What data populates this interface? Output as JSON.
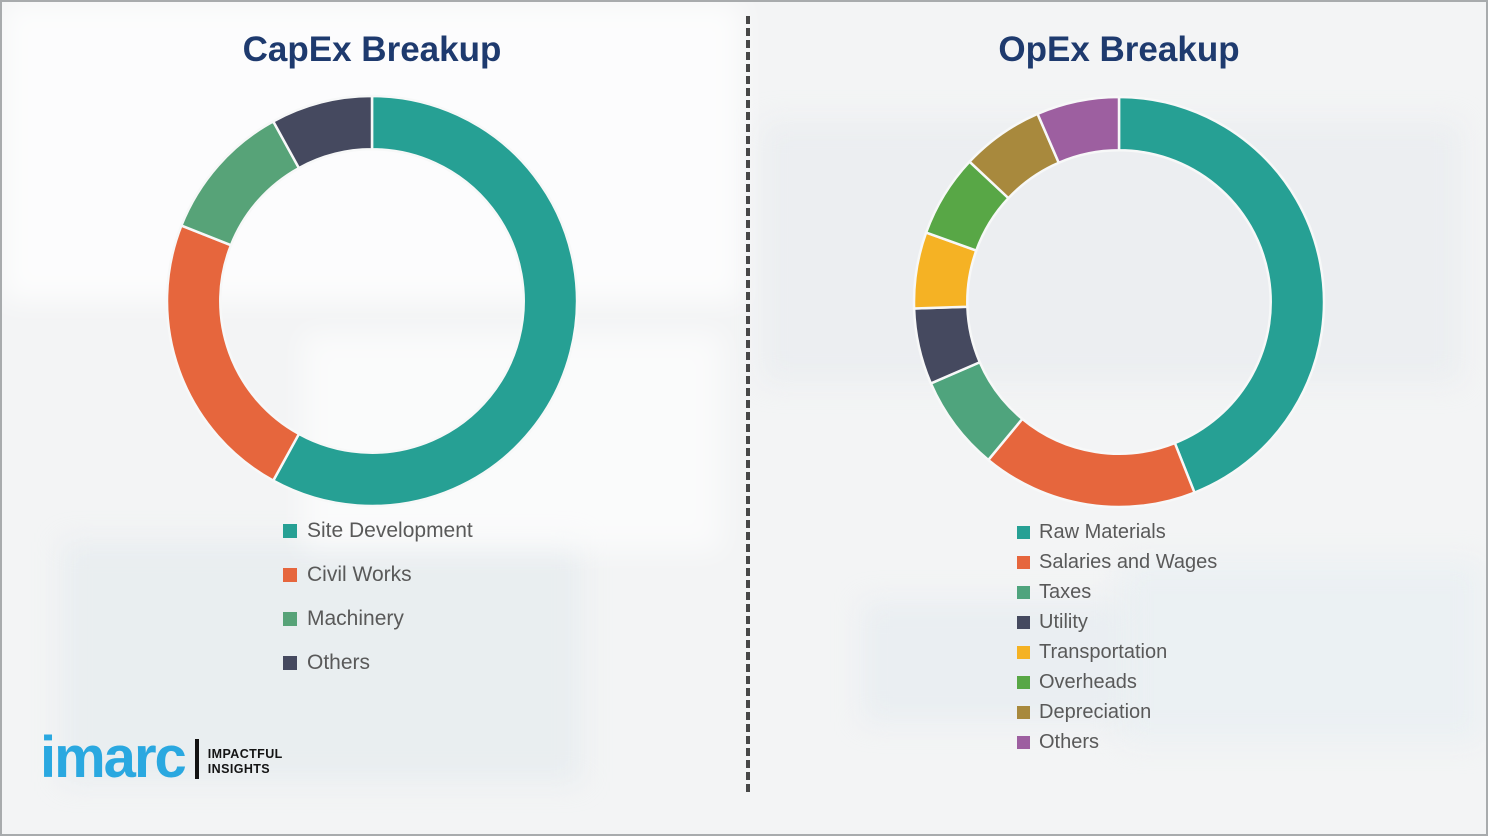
{
  "page": {
    "background_color": "#f3f4f5",
    "border_color": "#a8abad",
    "divider_style": "vertical-dashed",
    "divider_color": "#474747"
  },
  "logo": {
    "brand": "imarc",
    "brand_color": "#2aa8e0",
    "tagline_line1": "IMPACTFUL",
    "tagline_line2": "INSIGHTS"
  },
  "chart_data": [
    {
      "type": "pie",
      "donut": true,
      "donut_hole_ratio": 0.74,
      "start_angle_deg_from_top": 0,
      "direction": "clockwise",
      "title": "CapEx Breakup",
      "title_color": "#1e3a6e",
      "legend_position": "below-chart-left",
      "unit": "% (estimated from arc angles)",
      "series": [
        {
          "label": "Site Development",
          "value": 58,
          "color": "#26a094"
        },
        {
          "label": "Civil Works",
          "value": 23,
          "color": "#e6663d"
        },
        {
          "label": "Machinery",
          "value": 11,
          "color": "#57a378"
        },
        {
          "label": "Others",
          "value": 8,
          "color": "#45495f"
        }
      ]
    },
    {
      "type": "pie",
      "donut": true,
      "donut_hole_ratio": 0.74,
      "start_angle_deg_from_top": 0,
      "direction": "clockwise",
      "title": "OpEx Breakup",
      "title_color": "#1e3a6e",
      "legend_position": "below-chart-left",
      "unit": "% (estimated from arc angles)",
      "series": [
        {
          "label": "Raw Materials",
          "value": 44,
          "color": "#26a094"
        },
        {
          "label": "Salaries and Wages",
          "value": 17,
          "color": "#e6663d"
        },
        {
          "label": "Taxes",
          "value": 7.5,
          "color": "#4fa47d"
        },
        {
          "label": "Utility",
          "value": 6,
          "color": "#45495f"
        },
        {
          "label": "Transportation",
          "value": 6,
          "color": "#f5b224"
        },
        {
          "label": "Overheads",
          "value": 6.5,
          "color": "#58a746"
        },
        {
          "label": "Depreciation",
          "value": 6.5,
          "color": "#a8893d"
        },
        {
          "label": "Others",
          "value": 6.5,
          "color": "#9d5fa0"
        }
      ]
    }
  ]
}
